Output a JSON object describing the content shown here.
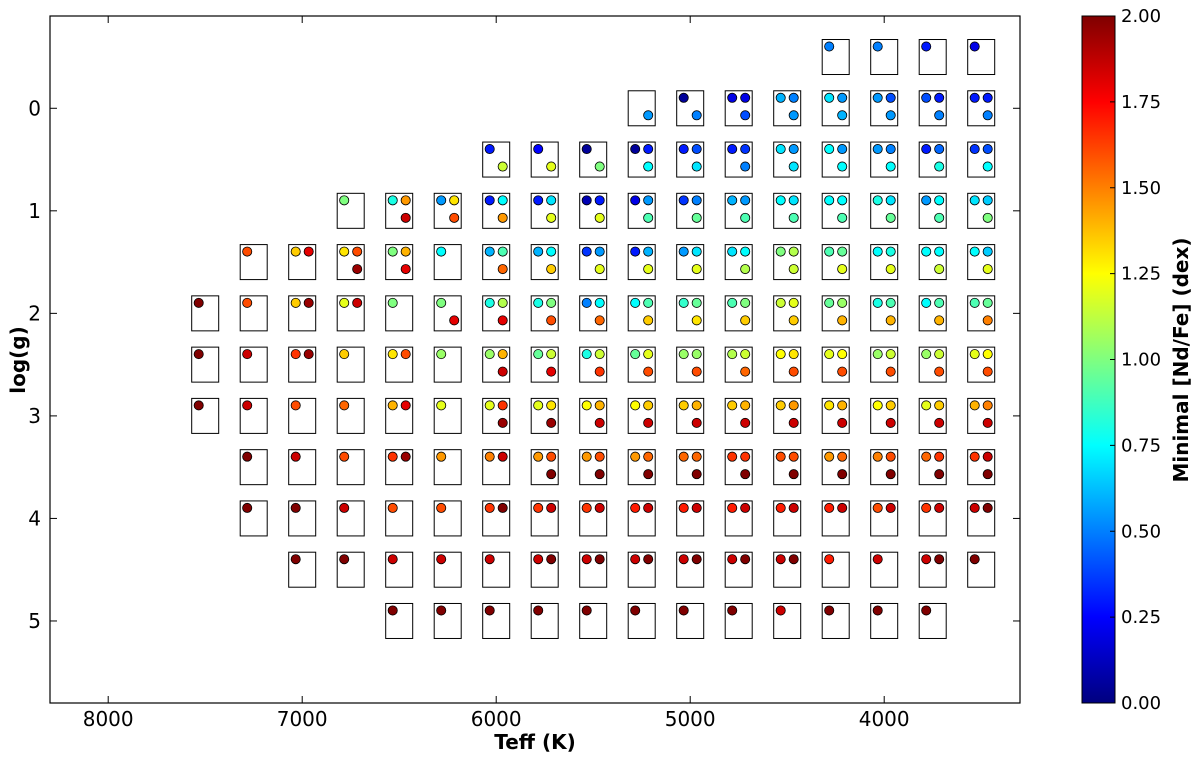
{
  "chart_data": {
    "type": "scatter",
    "title": "",
    "xlabel": "Teff (K)",
    "ylabel": "log(g)",
    "xlim": [
      8300,
      3300
    ],
    "ylim": [
      5.8,
      -0.9
    ],
    "x_ticks": [
      8000,
      7000,
      6000,
      5000,
      4000
    ],
    "y_ticks": [
      0,
      1,
      2,
      3,
      4,
      5
    ],
    "x_tick_labels": [
      "8000",
      "7000",
      "6000",
      "5000",
      "4000"
    ],
    "y_tick_labels": [
      "0",
      "1",
      "2",
      "3",
      "4",
      "5"
    ],
    "grid": false,
    "cells_note": "Each rectangle is one (Teff, log g) grid cell; circles inside are colored by Minimal [Nd/Fe].",
    "colorbar": {
      "label": "Minimal [Nd/Fe] (dex)",
      "min": 0.0,
      "max": 2.0,
      "colormap": "jet",
      "tick_labels": [
        "0.00",
        "0.25",
        "0.50",
        "0.75",
        "1.00",
        "1.25",
        "1.50",
        "1.75",
        "2.00"
      ]
    },
    "cells": [
      {
        "teff": 4250,
        "logg": -0.5,
        "ul": 0.5
      },
      {
        "teff": 4000,
        "logg": -0.5,
        "ul": 0.5
      },
      {
        "teff": 3750,
        "logg": -0.5,
        "ul": 0.3
      },
      {
        "teff": 3500,
        "logg": -0.5,
        "ul": 0.2
      },
      {
        "teff": 5250,
        "logg": 0,
        "lr": 0.55
      },
      {
        "teff": 5000,
        "logg": 0,
        "ul": 0.05,
        "lr": 0.5
      },
      {
        "teff": 4750,
        "logg": 0,
        "ul": 0.2,
        "ur": 0.2,
        "lr": 0.4
      },
      {
        "teff": 4500,
        "logg": 0,
        "ul": 0.6,
        "ur": 0.5,
        "lr": 0.55
      },
      {
        "teff": 4250,
        "logg": 0,
        "ul": 0.7,
        "ur": 0.55,
        "lr": 0.6
      },
      {
        "teff": 4000,
        "logg": 0,
        "ul": 0.55,
        "ur": 0.4,
        "lr": 0.55
      },
      {
        "teff": 3750,
        "logg": 0,
        "ul": 0.4,
        "ur": 0.3,
        "lr": 0.5
      },
      {
        "teff": 3500,
        "logg": 0,
        "ul": 0.3,
        "ur": 0.3,
        "lr": 0.5
      },
      {
        "teff": 6000,
        "logg": 0.5,
        "ul": 0.3,
        "lr": 1.15
      },
      {
        "teff": 5750,
        "logg": 0.5,
        "ul": 0.25,
        "lr": 1.2
      },
      {
        "teff": 5500,
        "logg": 0.5,
        "ul": 0.05,
        "lr": 1.0
      },
      {
        "teff": 5250,
        "logg": 0.5,
        "ul": 0.05,
        "ur": 0.3,
        "lr": 0.75
      },
      {
        "teff": 5000,
        "logg": 0.5,
        "ul": 0.3,
        "ur": 0.4,
        "lr": 0.7
      },
      {
        "teff": 4750,
        "logg": 0.5,
        "ul": 0.3,
        "ur": 0.35,
        "lr": 0.5
      },
      {
        "teff": 4500,
        "logg": 0.5,
        "ul": 0.7,
        "ur": 0.55,
        "lr": 0.7
      },
      {
        "teff": 4250,
        "logg": 0.5,
        "ul": 0.75,
        "ur": 0.55,
        "lr": 0.75
      },
      {
        "teff": 4000,
        "logg": 0.5,
        "ul": 0.55,
        "ur": 0.5,
        "lr": 0.75
      },
      {
        "teff": 3750,
        "logg": 0.5,
        "ul": 0.3,
        "ur": 0.45,
        "lr": 0.8
      },
      {
        "teff": 3500,
        "logg": 0.5,
        "ul": 0.35,
        "ur": 0.4,
        "lr": 0.75
      },
      {
        "teff": 6750,
        "logg": 1,
        "ul": 1.0
      },
      {
        "teff": 6500,
        "logg": 1,
        "ul": 0.8,
        "ur": 1.45,
        "lr": 1.85
      },
      {
        "teff": 6250,
        "logg": 1,
        "ul": 0.55,
        "ur": 1.3,
        "lr": 1.6
      },
      {
        "teff": 6000,
        "logg": 1,
        "ul": 0.3,
        "ur": 0.75,
        "lr": 1.45
      },
      {
        "teff": 5750,
        "logg": 1,
        "ul": 0.3,
        "ur": 0.7,
        "lr": 1.2
      },
      {
        "teff": 5500,
        "logg": 1,
        "ul": 0.1,
        "ur": 0.3,
        "lr": 1.2
      },
      {
        "teff": 5250,
        "logg": 1,
        "ul": 0.2,
        "ur": 0.55,
        "lr": 0.9
      },
      {
        "teff": 5000,
        "logg": 1,
        "ul": 0.35,
        "ur": 0.5,
        "lr": 0.95
      },
      {
        "teff": 4750,
        "logg": 1,
        "ul": 0.6,
        "ur": 0.55,
        "lr": 0.9
      },
      {
        "teff": 4500,
        "logg": 1,
        "ul": 0.75,
        "ur": 0.7,
        "lr": 0.9
      },
      {
        "teff": 4250,
        "logg": 1,
        "ul": 0.75,
        "ur": 0.75,
        "lr": 0.9
      },
      {
        "teff": 4000,
        "logg": 1,
        "ul": 0.8,
        "ur": 0.7,
        "lr": 0.95
      },
      {
        "teff": 3750,
        "logg": 1,
        "ul": 0.55,
        "ur": 0.75,
        "lr": 0.9
      },
      {
        "teff": 3500,
        "logg": 1,
        "ul": 0.7,
        "ur": 0.65,
        "lr": 1.0
      },
      {
        "teff": 7250,
        "logg": 1.5,
        "ul": 1.6
      },
      {
        "teff": 7000,
        "logg": 1.5,
        "ul": 1.35,
        "ur": 1.8
      },
      {
        "teff": 6750,
        "logg": 1.5,
        "ul": 1.3,
        "ur": 1.6,
        "lr": 1.95
      },
      {
        "teff": 6500,
        "logg": 1.5,
        "ul": 1.0,
        "ur": 1.4,
        "lr": 1.8
      },
      {
        "teff": 6250,
        "logg": 1.5,
        "ul": 0.75
      },
      {
        "teff": 6000,
        "logg": 1.5,
        "ul": 0.6,
        "ur": 0.9,
        "lr": 1.55
      },
      {
        "teff": 5750,
        "logg": 1.5,
        "ul": 0.6,
        "ur": 0.75,
        "lr": 1.35
      },
      {
        "teff": 5500,
        "logg": 1.5,
        "ul": 0.35,
        "ur": 0.55,
        "lr": 1.2
      },
      {
        "teff": 5250,
        "logg": 1.5,
        "ul": 0.3,
        "ur": 0.6,
        "lr": 1.2
      },
      {
        "teff": 5000,
        "logg": 1.5,
        "ul": 0.55,
        "ur": 0.7,
        "lr": 1.2
      },
      {
        "teff": 4750,
        "logg": 1.5,
        "ul": 0.7,
        "ur": 0.75,
        "lr": 1.1
      },
      {
        "teff": 4500,
        "logg": 1.5,
        "ul": 1.0,
        "ur": 1.1,
        "lr": 1.15
      },
      {
        "teff": 4250,
        "logg": 1.5,
        "ul": 0.9,
        "ur": 0.95,
        "lr": 1.2
      },
      {
        "teff": 4000,
        "logg": 1.5,
        "ul": 0.75,
        "ur": 0.8,
        "lr": 1.2
      },
      {
        "teff": 3750,
        "logg": 1.5,
        "ul": 0.75,
        "ur": 0.75,
        "lr": 1.15
      },
      {
        "teff": 3500,
        "logg": 1.5,
        "ul": 0.75,
        "ur": 0.65,
        "lr": 1.2
      },
      {
        "teff": 7500,
        "logg": 2,
        "ul": 2.0
      },
      {
        "teff": 7250,
        "logg": 2,
        "ul": 1.6
      },
      {
        "teff": 7000,
        "logg": 2,
        "ul": 1.35,
        "ur": 1.95
      },
      {
        "teff": 6750,
        "logg": 2,
        "ul": 1.2,
        "ur": 1.85
      },
      {
        "teff": 6500,
        "logg": 2,
        "ul": 1.0
      },
      {
        "teff": 6250,
        "logg": 2,
        "ul": 1.0,
        "lr": 1.8
      },
      {
        "teff": 6000,
        "logg": 2,
        "ul": 0.8,
        "ur": 1.1,
        "lr": 1.8
      },
      {
        "teff": 5750,
        "logg": 2,
        "ul": 0.8,
        "ur": 1.0,
        "lr": 1.6
      },
      {
        "teff": 5500,
        "logg": 2,
        "ul": 0.5,
        "ur": 0.75,
        "lr": 1.55
      },
      {
        "teff": 5250,
        "logg": 2,
        "ul": 0.75,
        "ur": 0.9,
        "lr": 1.35
      },
      {
        "teff": 5000,
        "logg": 2,
        "ul": 0.85,
        "ur": 0.95,
        "lr": 1.3
      },
      {
        "teff": 4750,
        "logg": 2,
        "ul": 0.9,
        "ur": 1.0,
        "lr": 1.35
      },
      {
        "teff": 4500,
        "logg": 2,
        "ul": 1.15,
        "ur": 1.2,
        "lr": 1.35
      },
      {
        "teff": 4250,
        "logg": 2,
        "ul": 0.95,
        "ur": 1.05,
        "lr": 1.4
      },
      {
        "teff": 4000,
        "logg": 2,
        "ul": 0.8,
        "ur": 0.9,
        "lr": 1.4
      },
      {
        "teff": 3750,
        "logg": 2,
        "ul": 0.75,
        "ur": 0.9,
        "lr": 1.4
      },
      {
        "teff": 3500,
        "logg": 2,
        "ul": 0.9,
        "ur": 0.95,
        "lr": 1.5
      },
      {
        "teff": 7500,
        "logg": 2.5,
        "ul": 2.0
      },
      {
        "teff": 7250,
        "logg": 2.5,
        "ul": 1.85
      },
      {
        "teff": 7000,
        "logg": 2.5,
        "ul": 1.65,
        "ur": 1.95
      },
      {
        "teff": 6750,
        "logg": 2.5,
        "ul": 1.35
      },
      {
        "teff": 6500,
        "logg": 2.5,
        "ul": 1.3,
        "ur": 1.6
      },
      {
        "teff": 6250,
        "logg": 2.5,
        "ul": 1.05
      },
      {
        "teff": 6000,
        "logg": 2.5,
        "ul": 1.05,
        "ur": 1.4,
        "lr": 1.85
      },
      {
        "teff": 5750,
        "logg": 2.5,
        "ul": 0.95,
        "ur": 1.15,
        "lr": 1.8
      },
      {
        "teff": 5500,
        "logg": 2.5,
        "ul": 0.8,
        "ur": 1.15,
        "lr": 1.65
      },
      {
        "teff": 5250,
        "logg": 2.5,
        "ul": 0.95,
        "ur": 1.2,
        "lr": 1.6
      },
      {
        "teff": 5000,
        "logg": 2.5,
        "ul": 1.05,
        "ur": 1.05,
        "lr": 1.6
      },
      {
        "teff": 4750,
        "logg": 2.5,
        "ul": 1.1,
        "ur": 1.15,
        "lr": 1.55
      },
      {
        "teff": 4500,
        "logg": 2.5,
        "ul": 1.25,
        "ur": 1.3,
        "lr": 1.6
      },
      {
        "teff": 4250,
        "logg": 2.5,
        "ul": 1.2,
        "ur": 1.25,
        "lr": 1.6
      },
      {
        "teff": 4000,
        "logg": 2.5,
        "ul": 1.05,
        "ur": 1.15,
        "lr": 1.6
      },
      {
        "teff": 3750,
        "logg": 2.5,
        "ul": 1.05,
        "ur": 1.15,
        "lr": 1.6
      },
      {
        "teff": 3500,
        "logg": 2.5,
        "ul": 1.2,
        "ur": 1.25,
        "lr": 1.6
      },
      {
        "teff": 7500,
        "logg": 3,
        "ul": 2.0
      },
      {
        "teff": 7250,
        "logg": 3,
        "ul": 1.85
      },
      {
        "teff": 7000,
        "logg": 3,
        "ul": 1.6
      },
      {
        "teff": 6750,
        "logg": 3,
        "ul": 1.55
      },
      {
        "teff": 6500,
        "logg": 3,
        "ul": 1.4,
        "ur": 1.8
      },
      {
        "teff": 6250,
        "logg": 3,
        "ul": 1.2
      },
      {
        "teff": 6000,
        "logg": 3,
        "ul": 1.2,
        "ur": 1.65,
        "lr": 1.95
      },
      {
        "teff": 5750,
        "logg": 3,
        "ul": 1.2,
        "ur": 1.3,
        "lr": 1.95
      },
      {
        "teff": 5500,
        "logg": 3,
        "ul": 1.25,
        "ur": 1.4,
        "lr": 1.85
      },
      {
        "teff": 5250,
        "logg": 3,
        "ul": 1.25,
        "ur": 1.35,
        "lr": 1.85
      },
      {
        "teff": 5000,
        "logg": 3,
        "ul": 1.35,
        "ur": 1.4,
        "lr": 1.85
      },
      {
        "teff": 4750,
        "logg": 3,
        "ul": 1.35,
        "ur": 1.4,
        "lr": 1.85
      },
      {
        "teff": 4500,
        "logg": 3,
        "ul": 1.35,
        "ur": 1.45,
        "lr": 1.85
      },
      {
        "teff": 4250,
        "logg": 3,
        "ul": 1.3,
        "ur": 1.4,
        "lr": 1.85
      },
      {
        "teff": 4000,
        "logg": 3,
        "ul": 1.25,
        "ur": 1.35,
        "lr": 1.85
      },
      {
        "teff": 3750,
        "logg": 3,
        "ul": 1.2,
        "ur": 1.35,
        "lr": 1.85
      },
      {
        "teff": 3500,
        "logg": 3,
        "ul": 1.4,
        "ur": 1.5,
        "lr": 1.85
      },
      {
        "teff": 7250,
        "logg": 3.5,
        "ul": 2.0
      },
      {
        "teff": 7000,
        "logg": 3.5,
        "ul": 1.85
      },
      {
        "teff": 6750,
        "logg": 3.5,
        "ul": 1.6
      },
      {
        "teff": 6500,
        "logg": 3.5,
        "ul": 1.65,
        "ur": 1.95
      },
      {
        "teff": 6250,
        "logg": 3.5,
        "ul": 1.45
      },
      {
        "teff": 6000,
        "logg": 3.5,
        "ul": 1.5,
        "ur": 1.85
      },
      {
        "teff": 5750,
        "logg": 3.5,
        "ul": 1.45,
        "ur": 1.6,
        "lr": 2.0
      },
      {
        "teff": 5500,
        "logg": 3.5,
        "ul": 1.45,
        "ur": 1.6,
        "lr": 2.0
      },
      {
        "teff": 5250,
        "logg": 3.5,
        "ul": 1.45,
        "ur": 1.55,
        "lr": 2.0
      },
      {
        "teff": 5000,
        "logg": 3.5,
        "ul": 1.55,
        "ur": 1.55,
        "lr": 2.0
      },
      {
        "teff": 4750,
        "logg": 3.5,
        "ul": 1.65,
        "ur": 1.65,
        "lr": 2.0
      },
      {
        "teff": 4500,
        "logg": 3.5,
        "ul": 1.6,
        "ur": 1.6,
        "lr": 2.0
      },
      {
        "teff": 4250,
        "logg": 3.5,
        "ul": 1.45,
        "ur": 1.55,
        "lr": 2.0
      },
      {
        "teff": 4000,
        "logg": 3.5,
        "ul": 1.5,
        "ur": 1.6,
        "lr": 2.0
      },
      {
        "teff": 3750,
        "logg": 3.5,
        "ul": 1.55,
        "ur": 1.65,
        "lr": 2.0
      },
      {
        "teff": 3500,
        "logg": 3.5,
        "ul": 1.65,
        "ur": 1.85,
        "lr": 2.0
      },
      {
        "teff": 7250,
        "logg": 4,
        "ul": 2.0
      },
      {
        "teff": 7000,
        "logg": 4,
        "ul": 2.0
      },
      {
        "teff": 6750,
        "logg": 4,
        "ul": 1.85
      },
      {
        "teff": 6500,
        "logg": 4,
        "ul": 1.6
      },
      {
        "teff": 6250,
        "logg": 4,
        "ul": 1.6
      },
      {
        "teff": 6000,
        "logg": 4,
        "ul": 1.65,
        "ur": 2.0
      },
      {
        "teff": 5750,
        "logg": 4,
        "ul": 1.65,
        "ur": 1.85
      },
      {
        "teff": 5500,
        "logg": 4,
        "ul": 1.65,
        "ur": 1.85
      },
      {
        "teff": 5250,
        "logg": 4,
        "ul": 1.7,
        "ur": 1.85
      },
      {
        "teff": 5000,
        "logg": 4,
        "ul": 1.7,
        "ur": 1.85
      },
      {
        "teff": 4750,
        "logg": 4,
        "ul": 1.7,
        "ur": 1.85
      },
      {
        "teff": 4500,
        "logg": 4,
        "ul": 1.7,
        "ur": 1.85
      },
      {
        "teff": 4250,
        "logg": 4,
        "ul": 1.7,
        "ur": 1.85
      },
      {
        "teff": 4000,
        "logg": 4,
        "ul": 1.6,
        "ur": 1.85
      },
      {
        "teff": 3750,
        "logg": 4,
        "ul": 1.65,
        "ur": 1.85
      },
      {
        "teff": 3500,
        "logg": 4,
        "ul": 1.85,
        "ur": 2.0
      },
      {
        "teff": 7000,
        "logg": 4.5,
        "ul": 2.0
      },
      {
        "teff": 6750,
        "logg": 4.5,
        "ul": 2.0
      },
      {
        "teff": 6500,
        "logg": 4.5,
        "ul": 1.85
      },
      {
        "teff": 6250,
        "logg": 4.5,
        "ul": 1.85
      },
      {
        "teff": 6000,
        "logg": 4.5,
        "ul": 1.85
      },
      {
        "teff": 5750,
        "logg": 4.5,
        "ul": 1.85,
        "ur": 2.0
      },
      {
        "teff": 5500,
        "logg": 4.5,
        "ul": 1.85,
        "ur": 2.0
      },
      {
        "teff": 5250,
        "logg": 4.5,
        "ul": 1.85,
        "ur": 2.0
      },
      {
        "teff": 5000,
        "logg": 4.5,
        "ul": 1.85,
        "ur": 2.0
      },
      {
        "teff": 4750,
        "logg": 4.5,
        "ul": 1.85,
        "ur": 2.0
      },
      {
        "teff": 4500,
        "logg": 4.5,
        "ul": 1.85,
        "ur": 2.0
      },
      {
        "teff": 4250,
        "logg": 4.5,
        "ul": 1.7
      },
      {
        "teff": 4000,
        "logg": 4.5,
        "ul": 1.85
      },
      {
        "teff": 3750,
        "logg": 4.5,
        "ul": 1.85,
        "ur": 2.0
      },
      {
        "teff": 3500,
        "logg": 4.5,
        "ul": 2.0
      },
      {
        "teff": 6500,
        "logg": 5,
        "ul": 2.0
      },
      {
        "teff": 6250,
        "logg": 5,
        "ul": 2.0
      },
      {
        "teff": 6000,
        "logg": 5,
        "ul": 2.0
      },
      {
        "teff": 5750,
        "logg": 5,
        "ul": 2.0
      },
      {
        "teff": 5500,
        "logg": 5,
        "ul": 2.0
      },
      {
        "teff": 5250,
        "logg": 5,
        "ul": 2.0
      },
      {
        "teff": 5000,
        "logg": 5,
        "ul": 2.0
      },
      {
        "teff": 4750,
        "logg": 5,
        "ul": 2.0
      },
      {
        "teff": 4500,
        "logg": 5,
        "ul": 1.85
      },
      {
        "teff": 4250,
        "logg": 5,
        "ul": 2.0
      },
      {
        "teff": 4000,
        "logg": 5,
        "ul": 2.0
      },
      {
        "teff": 3750,
        "logg": 5,
        "ul": 2.0
      }
    ]
  }
}
